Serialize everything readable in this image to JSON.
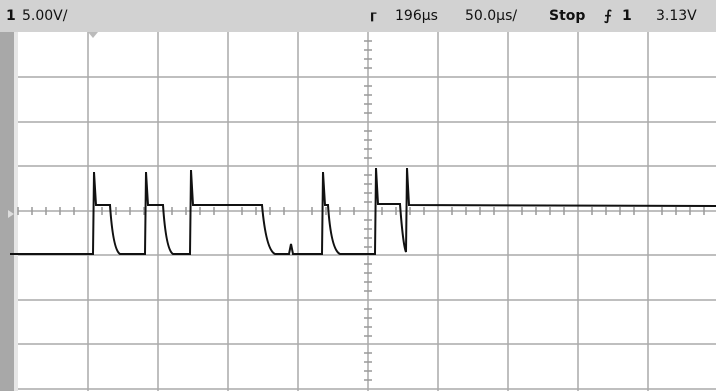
{
  "header": {
    "channel": "1",
    "volts_per_div": "5.00V/",
    "time_position": "196µs",
    "time_per_div": "50.0µs/",
    "run_state": "Stop",
    "trigger_source": "1",
    "trigger_level": "3.13V"
  }
}
